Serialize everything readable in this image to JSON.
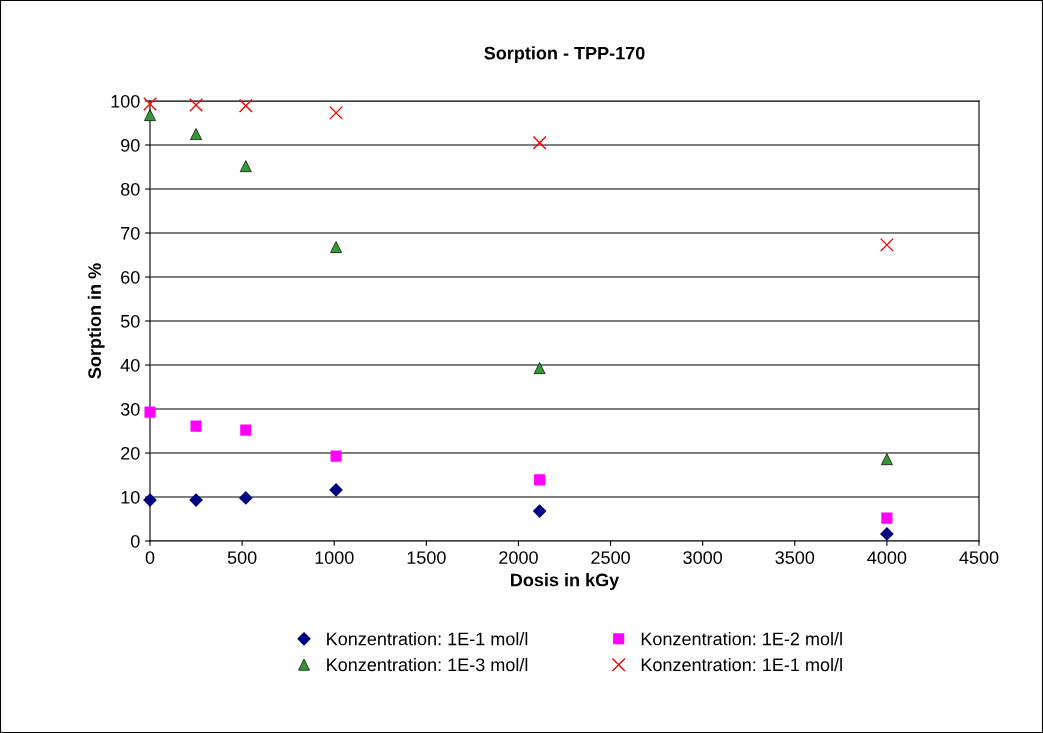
{
  "chart_data": {
    "type": "scatter",
    "title": "Sorption - TPP-170",
    "xlabel": "Dosis in kGy",
    "ylabel": "Sorption in %",
    "x": [
      0,
      250,
      520,
      1010,
      2115,
      4000
    ],
    "series": [
      {
        "name": "Konzentration: 1E-1 mol/l",
        "color": "#000080",
        "marker": "diamond",
        "values": [
          9.3,
          9.3,
          9.8,
          11.6,
          6.8,
          1.6
        ]
      },
      {
        "name": "Konzentration: 1E-2 mol/l",
        "color": "#ff00ff",
        "marker": "square",
        "values": [
          29.3,
          26.1,
          25.2,
          19.3,
          13.9,
          5.2
        ]
      },
      {
        "name": "Konzentration: 1E-3 mol/l",
        "color": "#339933",
        "marker": "triangle",
        "values": [
          96.8,
          92.5,
          85.2,
          66.8,
          39.3,
          18.6
        ]
      },
      {
        "name": "Konzentration: 1E-1 mol/l",
        "color": "#ff0000",
        "marker": "cross",
        "values": [
          99.3,
          99.1,
          98.9,
          97.3,
          90.5,
          67.3
        ]
      }
    ],
    "xlim": [
      0,
      4500
    ],
    "xticks": [
      0,
      500,
      1000,
      1500,
      2000,
      2500,
      3000,
      3500,
      4000,
      4500
    ],
    "ylim": [
      0,
      100
    ],
    "yticks": [
      0,
      10,
      20,
      30,
      40,
      50,
      60,
      70,
      80,
      90,
      100
    ],
    "grid": "y",
    "legend": "bottom"
  }
}
